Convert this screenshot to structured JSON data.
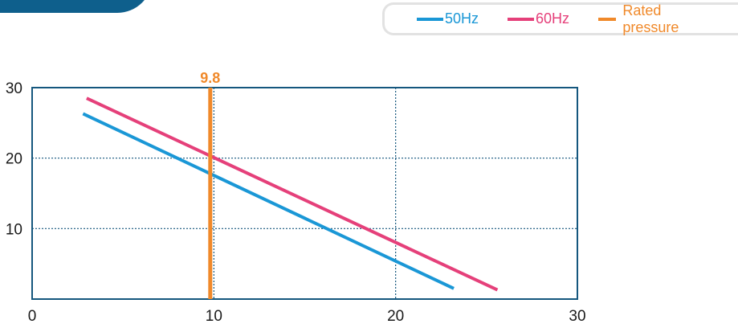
{
  "legend": {
    "items": [
      {
        "label": "50Hz",
        "color": "#1a97d6"
      },
      {
        "label": "60Hz",
        "color": "#e5407a"
      },
      {
        "label": "Rated pressure",
        "color": "#f0892a"
      }
    ]
  },
  "chart_data": {
    "type": "line",
    "title": "",
    "xlabel": "",
    "ylabel": "",
    "xlim": [
      0,
      30
    ],
    "ylim": [
      0,
      30
    ],
    "x_ticks": [
      0,
      10,
      20,
      30
    ],
    "y_ticks": [
      10,
      20,
      30
    ],
    "grid": true,
    "legend_position": "top-right",
    "series": [
      {
        "name": "50Hz",
        "color": "#1a97d6",
        "points": [
          [
            2.8,
            26.3
          ],
          [
            23.2,
            1.5
          ]
        ]
      },
      {
        "name": "60Hz",
        "color": "#e5407a",
        "points": [
          [
            3.0,
            28.5
          ],
          [
            25.6,
            1.3
          ]
        ]
      }
    ],
    "reference_line": {
      "name": "Rated pressure",
      "x": 9.8,
      "label": "9.8",
      "color": "#f0892a"
    }
  }
}
